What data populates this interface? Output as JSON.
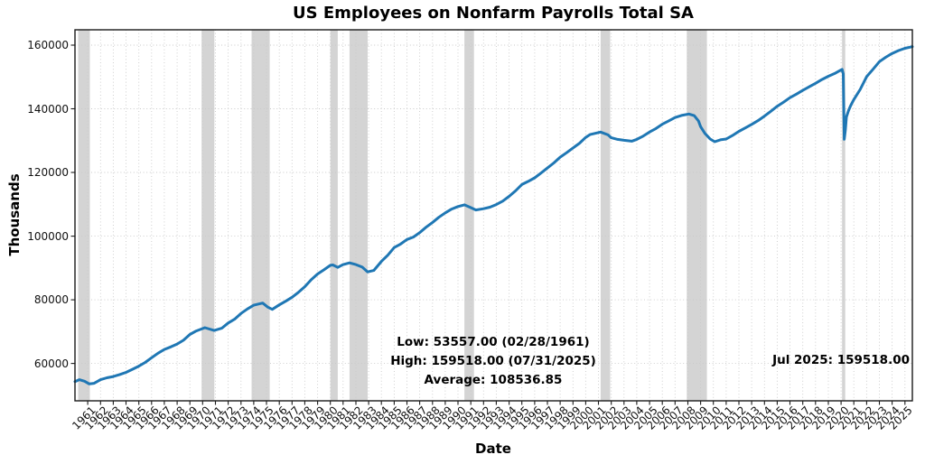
{
  "chart_data": {
    "type": "line",
    "title": "US Employees on Nonfarm Payrolls Total SA",
    "xlabel": "Date",
    "ylabel": "Thousands",
    "xlim": [
      1960.0,
      2025.583
    ],
    "ylim": [
      48259,
      164816
    ],
    "grid": true,
    "legend": "none",
    "line_color": "#1f77b4",
    "recession_band_color": "#d4d4d4",
    "y_ticks": [
      60000,
      80000,
      100000,
      120000,
      140000,
      160000
    ],
    "x_ticks": [
      1961,
      1962,
      1963,
      1964,
      1965,
      1966,
      1967,
      1968,
      1969,
      1970,
      1971,
      1972,
      1973,
      1974,
      1975,
      1976,
      1977,
      1978,
      1979,
      1980,
      1981,
      1982,
      1983,
      1984,
      1985,
      1986,
      1987,
      1988,
      1989,
      1990,
      1991,
      1992,
      1993,
      1994,
      1995,
      1996,
      1997,
      1998,
      1999,
      2000,
      2001,
      2002,
      2003,
      2004,
      2005,
      2006,
      2007,
      2008,
      2009,
      2010,
      2011,
      2012,
      2013,
      2014,
      2015,
      2016,
      2017,
      2018,
      2019,
      2020,
      2021,
      2022,
      2023,
      2024,
      2025
    ],
    "recession_bands": [
      [
        1960.25,
        1961.17
      ],
      [
        1969.92,
        1970.92
      ],
      [
        1973.83,
        1975.25
      ],
      [
        1980.0,
        1980.58
      ],
      [
        1981.5,
        1982.92
      ],
      [
        1990.5,
        1991.25
      ],
      [
        2001.17,
        2001.92
      ],
      [
        2007.92,
        2009.5
      ],
      [
        2020.08,
        2020.33
      ]
    ],
    "series": [
      {
        "name": "US Employees on Nonfarm Payrolls Total SA",
        "points": [
          [
            1960,
            54296
          ],
          [
            1960.33,
            54900
          ],
          [
            1960.75,
            54400
          ],
          [
            1961.12,
            53557
          ],
          [
            1961.5,
            53760
          ],
          [
            1962,
            54900
          ],
          [
            1962.5,
            55500
          ],
          [
            1963,
            55880
          ],
          [
            1963.5,
            56500
          ],
          [
            1964,
            57200
          ],
          [
            1964.5,
            58150
          ],
          [
            1965,
            59150
          ],
          [
            1965.5,
            60300
          ],
          [
            1966,
            61800
          ],
          [
            1966.5,
            63200
          ],
          [
            1967,
            64400
          ],
          [
            1967.5,
            65200
          ],
          [
            1968,
            66100
          ],
          [
            1968.5,
            67300
          ],
          [
            1969,
            69100
          ],
          [
            1969.5,
            70200
          ],
          [
            1970.17,
            71240
          ],
          [
            1970.9,
            70350
          ],
          [
            1971.5,
            71050
          ],
          [
            1972,
            72700
          ],
          [
            1972.5,
            73900
          ],
          [
            1973,
            75700
          ],
          [
            1973.5,
            77100
          ],
          [
            1974,
            78300
          ],
          [
            1974.7,
            78960
          ],
          [
            1975.1,
            77700
          ],
          [
            1975.45,
            76980
          ],
          [
            1976,
            78400
          ],
          [
            1976.5,
            79550
          ],
          [
            1977,
            80780
          ],
          [
            1977.5,
            82350
          ],
          [
            1978,
            84100
          ],
          [
            1978.5,
            86300
          ],
          [
            1979,
            88100
          ],
          [
            1979.5,
            89400
          ],
          [
            1980,
            90830
          ],
          [
            1980.2,
            90940
          ],
          [
            1980.58,
            90180
          ],
          [
            1981,
            91040
          ],
          [
            1981.5,
            91600
          ],
          [
            1982,
            91050
          ],
          [
            1982.5,
            90270
          ],
          [
            1982.92,
            88770
          ],
          [
            1983.4,
            89200
          ],
          [
            1984,
            92050
          ],
          [
            1984.5,
            94000
          ],
          [
            1985,
            96400
          ],
          [
            1985.5,
            97500
          ],
          [
            1986,
            98950
          ],
          [
            1986.5,
            99700
          ],
          [
            1987,
            101100
          ],
          [
            1987.5,
            102800
          ],
          [
            1988,
            104300
          ],
          [
            1988.5,
            105900
          ],
          [
            1989,
            107300
          ],
          [
            1989.5,
            108500
          ],
          [
            1990,
            109300
          ],
          [
            1990.5,
            109820
          ],
          [
            1991,
            108950
          ],
          [
            1991.4,
            108220
          ],
          [
            1992,
            108600
          ],
          [
            1992.5,
            109100
          ],
          [
            1993,
            109900
          ],
          [
            1993.5,
            111000
          ],
          [
            1994,
            112500
          ],
          [
            1994.5,
            114200
          ],
          [
            1995,
            116200
          ],
          [
            1995.5,
            117200
          ],
          [
            1996,
            118300
          ],
          [
            1996.5,
            119800
          ],
          [
            1997,
            121400
          ],
          [
            1997.5,
            123000
          ],
          [
            1998,
            124800
          ],
          [
            1998.5,
            126200
          ],
          [
            1999,
            127700
          ],
          [
            1999.5,
            129100
          ],
          [
            2000,
            131000
          ],
          [
            2000.33,
            131900
          ],
          [
            2001.17,
            132690
          ],
          [
            2001.75,
            131800
          ],
          [
            2002,
            130900
          ],
          [
            2002.5,
            130400
          ],
          [
            2003,
            130100
          ],
          [
            2003.6,
            129820
          ],
          [
            2004,
            130400
          ],
          [
            2004.5,
            131400
          ],
          [
            2005,
            132700
          ],
          [
            2005.5,
            133800
          ],
          [
            2006,
            135150
          ],
          [
            2006.5,
            136200
          ],
          [
            2007,
            137250
          ],
          [
            2007.5,
            137900
          ],
          [
            2008.08,
            138365
          ],
          [
            2008.5,
            137850
          ],
          [
            2008.83,
            136200
          ],
          [
            2009,
            134400
          ],
          [
            2009.33,
            132300
          ],
          [
            2009.75,
            130500
          ],
          [
            2010.1,
            129655
          ],
          [
            2010.6,
            130300
          ],
          [
            2011,
            130500
          ],
          [
            2011.5,
            131600
          ],
          [
            2012,
            132900
          ],
          [
            2012.5,
            134000
          ],
          [
            2013,
            135100
          ],
          [
            2013.5,
            136300
          ],
          [
            2014,
            137700
          ],
          [
            2014.5,
            139200
          ],
          [
            2015,
            140800
          ],
          [
            2015.5,
            142100
          ],
          [
            2016,
            143500
          ],
          [
            2016.5,
            144600
          ],
          [
            2017,
            145800
          ],
          [
            2017.5,
            146900
          ],
          [
            2018,
            148000
          ],
          [
            2018.5,
            149200
          ],
          [
            2019,
            150200
          ],
          [
            2019.5,
            151100
          ],
          [
            2020.08,
            152400
          ],
          [
            2020.17,
            151000
          ],
          [
            2020.25,
            130420
          ],
          [
            2020.33,
            133200
          ],
          [
            2020.42,
            137400
          ],
          [
            2020.58,
            139400
          ],
          [
            2020.75,
            141000
          ],
          [
            2021,
            142900
          ],
          [
            2021.5,
            146100
          ],
          [
            2022,
            150100
          ],
          [
            2022.5,
            152400
          ],
          [
            2023,
            154800
          ],
          [
            2023.5,
            156200
          ],
          [
            2024,
            157400
          ],
          [
            2024.5,
            158300
          ],
          [
            2025,
            159000
          ],
          [
            2025.58,
            159518
          ]
        ]
      }
    ],
    "annotations": {
      "low": "Low: 53557.00 (02/28/1961)",
      "high": "High: 159518.00 (07/31/2025)",
      "average": "Average: 108536.85",
      "latest": "Jul 2025: 159518.00"
    },
    "stats": {
      "low_value": 53557.0,
      "low_date": "02/28/1961",
      "high_value": 159518.0,
      "high_date": "07/31/2025",
      "average_value": 108536.85,
      "latest_period": "Jul 2025",
      "latest_value": 159518.0
    }
  }
}
